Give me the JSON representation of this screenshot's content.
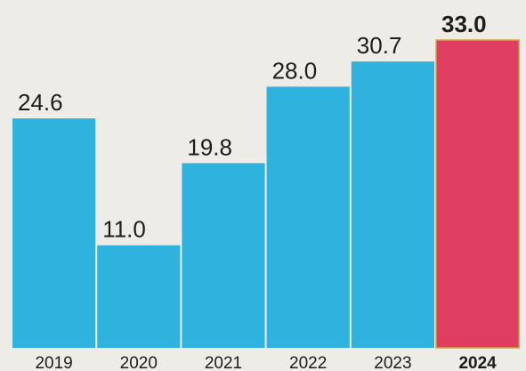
{
  "chart_data": {
    "type": "bar",
    "categories": [
      "2019",
      "2020",
      "2021",
      "2022",
      "2023",
      "2024"
    ],
    "values": [
      24.6,
      11.0,
      19.8,
      28.0,
      30.7,
      33.0
    ],
    "value_labels": [
      "24.6",
      "11.0",
      "19.8",
      "28.0",
      "30.7",
      "33.0"
    ],
    "ylim": [
      0,
      33.0
    ],
    "grid": false,
    "legend": "none",
    "colors": {
      "bar": "#2fb2de",
      "highlight_bar": "#df3e62",
      "highlight_bar_edge": "#d4a63b",
      "background": "#eeece7",
      "text": "#1d1d1d"
    },
    "highlight_category": "2024"
  }
}
